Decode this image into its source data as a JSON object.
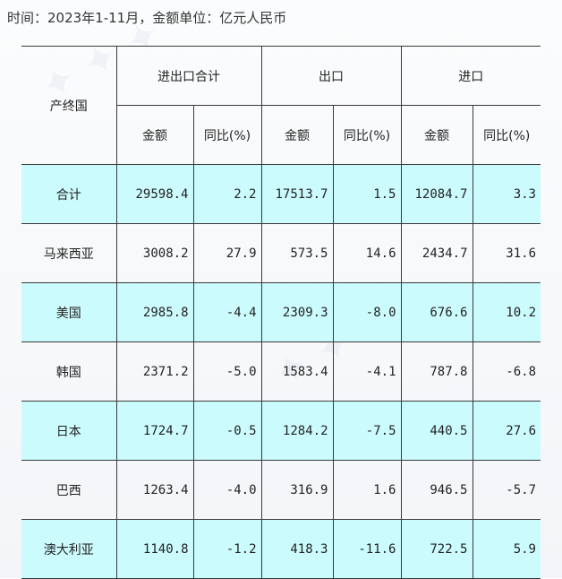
{
  "caption": "时间：2023年1-11月，金额单位：亿元人民币",
  "headers": {
    "country": "产终国",
    "total": "进出口合计",
    "export": "出口",
    "import": "进口",
    "amount": "金额",
    "yoy": "同比(%)"
  },
  "rows": [
    {
      "name": "合计",
      "total_amt": "29598.4",
      "total_yoy": "2.2",
      "exp_amt": "17513.7",
      "exp_yoy": "1.5",
      "imp_amt": "12084.7",
      "imp_yoy": "3.3",
      "highlight": true
    },
    {
      "name": "马来西亚",
      "total_amt": "3008.2",
      "total_yoy": "27.9",
      "exp_amt": "573.5",
      "exp_yoy": "14.6",
      "imp_amt": "2434.7",
      "imp_yoy": "31.6",
      "highlight": false
    },
    {
      "name": "美国",
      "total_amt": "2985.8",
      "total_yoy": "-4.4",
      "exp_amt": "2309.3",
      "exp_yoy": "-8.0",
      "imp_amt": "676.6",
      "imp_yoy": "10.2",
      "highlight": true
    },
    {
      "name": "韩国",
      "total_amt": "2371.2",
      "total_yoy": "-5.0",
      "exp_amt": "1583.4",
      "exp_yoy": "-4.1",
      "imp_amt": "787.8",
      "imp_yoy": "-6.8",
      "highlight": false
    },
    {
      "name": "日本",
      "total_amt": "1724.7",
      "total_yoy": "-0.5",
      "exp_amt": "1284.2",
      "exp_yoy": "-7.5",
      "imp_amt": "440.5",
      "imp_yoy": "27.6",
      "highlight": true
    },
    {
      "name": "巴西",
      "total_amt": "1263.4",
      "total_yoy": "-4.0",
      "exp_amt": "316.9",
      "exp_yoy": "1.6",
      "imp_amt": "946.5",
      "imp_yoy": "-5.7",
      "highlight": false
    },
    {
      "name": "澳大利亚",
      "total_amt": "1140.8",
      "total_yoy": "-1.2",
      "exp_amt": "418.3",
      "exp_yoy": "-11.6",
      "imp_amt": "722.5",
      "imp_yoy": "5.9",
      "highlight": true
    }
  ],
  "colors": {
    "highlight_row": "#ccfbfd",
    "border": "#3a3a3a"
  }
}
